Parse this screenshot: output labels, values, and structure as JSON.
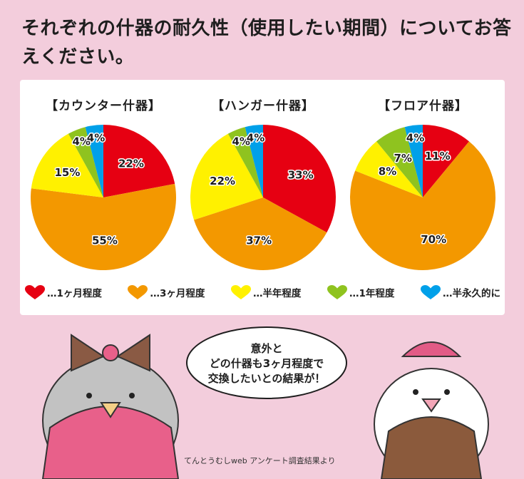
{
  "question": "それぞれの什器の耐久性（使用したい期間）についてお答えください。",
  "chart_data": [
    {
      "type": "pie",
      "title": "【カウンター什器】",
      "categories": [
        "1ヶ月程度",
        "3ヶ月程度",
        "半年程度",
        "1年程度",
        "半永久的に"
      ],
      "values": [
        22,
        55,
        15,
        4,
        4
      ],
      "labels": [
        "22%",
        "55%",
        "15%",
        "4%",
        "4%"
      ]
    },
    {
      "type": "pie",
      "title": "【ハンガー什器】",
      "categories": [
        "1ヶ月程度",
        "3ヶ月程度",
        "半年程度",
        "1年程度",
        "半永久的に"
      ],
      "values": [
        33,
        37,
        22,
        4,
        4
      ],
      "labels": [
        "33%",
        "37%",
        "22%",
        "4%",
        "4%"
      ]
    },
    {
      "type": "pie",
      "title": "【フロア什器】",
      "categories": [
        "1ヶ月程度",
        "3ヶ月程度",
        "半年程度",
        "1年程度",
        "半永久的に"
      ],
      "values": [
        11,
        70,
        8,
        7,
        4
      ],
      "labels": [
        "11%",
        "70%",
        "8%",
        "7%",
        "4%"
      ]
    }
  ],
  "legend": [
    {
      "label": "…1ヶ月程度",
      "color": "#e60012"
    },
    {
      "label": "…3ヶ月程度",
      "color": "#f39800"
    },
    {
      "label": "…半年程度",
      "color": "#fff100"
    },
    {
      "label": "…1年程度",
      "color": "#8fc31f"
    },
    {
      "label": "…半永久的に",
      "color": "#00a0e9"
    }
  ],
  "speech": "意外と\nどの什器も3ヶ月程度で\n交換したいとの結果が！",
  "credit": "てんとうむしweb アンケート調査結果より"
}
